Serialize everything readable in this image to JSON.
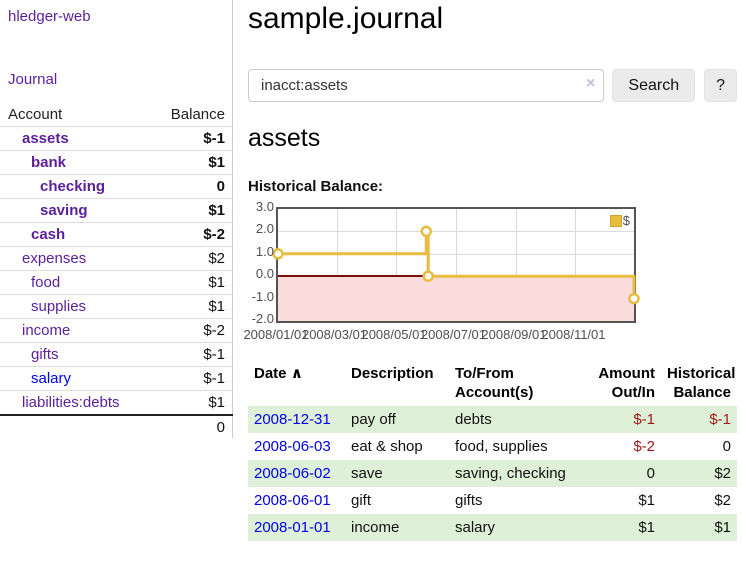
{
  "colors": {
    "accent_purple": "#5c1f9c",
    "link_blue": "#0000ee",
    "negative_red": "#9e1a1a",
    "negative_dim_red": "#b97070",
    "row_stripe_green": "#dff0d8",
    "chart_series_yellow": "#e8bd3f",
    "chart_negative_fill": "#fbdcdc",
    "chart_zero_line": "#7e0c0c"
  },
  "sidebar": {
    "brand": "hledger-web",
    "nav": [
      {
        "label": "Journal"
      }
    ],
    "accounts_table": {
      "headers": [
        "Account",
        "Balance"
      ],
      "rows": [
        {
          "account": "assets",
          "indent": 1,
          "bold": true,
          "balance": "$-1"
        },
        {
          "account": "bank",
          "indent": 2,
          "bold": true,
          "balance": "$1"
        },
        {
          "account": "checking",
          "indent": 3,
          "bold": true,
          "balance": "0"
        },
        {
          "account": "saving",
          "indent": 3,
          "bold": true,
          "balance": "$1"
        },
        {
          "account": "cash",
          "indent": 2,
          "bold": true,
          "balance": "$-2"
        },
        {
          "account": "expenses",
          "indent": 1,
          "bold": false,
          "balance": "$2"
        },
        {
          "account": "food",
          "indent": 2,
          "bold": false,
          "balance": "$1"
        },
        {
          "account": "supplies",
          "indent": 2,
          "bold": false,
          "balance": "$1"
        },
        {
          "account": "income",
          "indent": 1,
          "bold": false,
          "balance": "$-2"
        },
        {
          "account": "gifts",
          "indent": 2,
          "bold": false,
          "balance": "$-1"
        },
        {
          "account": "salary",
          "indent": 2,
          "bold": false,
          "balance": "$-1",
          "unvisited": true
        },
        {
          "account": "liabilities:debts",
          "indent": 1,
          "bold": false,
          "balance": "$1"
        }
      ],
      "total": "0"
    }
  },
  "header": {
    "title": "sample.journal"
  },
  "search": {
    "value": "inacct:assets",
    "clear_icon": "×",
    "button": "Search",
    "help_button": "?"
  },
  "account_page": {
    "heading": "assets",
    "chart_label": "Historical Balance:"
  },
  "chart_data": {
    "type": "line",
    "interpolation": "step-after",
    "title": "Historical Balance:",
    "ylim": [
      -2,
      3
    ],
    "x_range_days": 365,
    "y_ticks": [
      {
        "label": "3.0",
        "value": 3
      },
      {
        "label": "2.0",
        "value": 2
      },
      {
        "label": "1.0",
        "value": 1
      },
      {
        "label": "0.0",
        "value": 0
      },
      {
        "label": "-1.0",
        "value": -1
      },
      {
        "label": "-2.0",
        "value": -2
      }
    ],
    "x_ticks": [
      {
        "label": "2008/01/01",
        "day": 0
      },
      {
        "label": "2008/03/01",
        "day": 60
      },
      {
        "label": "2008/05/01",
        "day": 121
      },
      {
        "label": "2008/07/01",
        "day": 182
      },
      {
        "label": "2008/09/01",
        "day": 244
      },
      {
        "label": "2008/11/01",
        "day": 305
      }
    ],
    "series": [
      {
        "name": "$",
        "color": "#e8bd3f",
        "points": [
          {
            "date": "2008-01-01",
            "day": 0,
            "value": 1
          },
          {
            "date": "2008-06-01",
            "day": 152,
            "value": 2
          },
          {
            "date": "2008-06-03",
            "day": 154,
            "value": 0
          },
          {
            "date": "2008-12-31",
            "day": 365,
            "value": -1
          }
        ]
      }
    ],
    "legend_position": "top-right",
    "grid": true
  },
  "register_table": {
    "sort_icon": "∧",
    "headers": [
      "Date",
      "Description",
      "To/From Account(s)",
      "Amount Out/In",
      "Historical Balance"
    ],
    "rows": [
      {
        "date": "2008-12-31",
        "description": "pay off",
        "accounts": "debts",
        "amount": "$-1",
        "balance": "$-1"
      },
      {
        "date": "2008-06-03",
        "description": "eat & shop",
        "accounts": "food, supplies",
        "amount": "$-2",
        "balance": "0"
      },
      {
        "date": "2008-06-02",
        "description": "save",
        "accounts": "saving, checking",
        "amount": "0",
        "balance": "$2"
      },
      {
        "date": "2008-06-01",
        "description": "gift",
        "accounts": "gifts",
        "amount": "$1",
        "balance": "$2"
      },
      {
        "date": "2008-01-01",
        "description": "income",
        "accounts": "salary",
        "amount": "$1",
        "balance": "$1"
      }
    ]
  }
}
